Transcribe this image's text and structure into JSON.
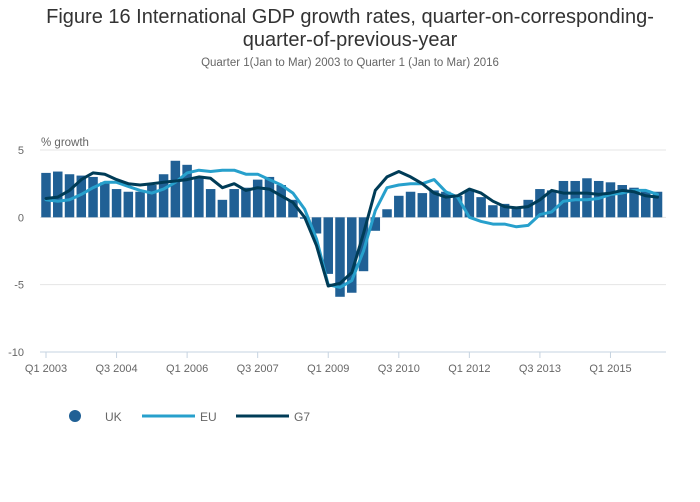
{
  "chart_data": {
    "type": "bar",
    "title": "Figure 16 International GDP growth rates, quarter-on-corresponding-quarter-of-previous-year",
    "title_lines": [
      "Figure 16 International GDP growth rates, quarter-on-corresponding-",
      "quarter-of-previous-year"
    ],
    "subtitle": "Quarter 1(Jan to Mar) 2003 to Quarter 1 (Jan to Mar) 2016",
    "xlabel": "",
    "ylabel": "% growth",
    "ylim": [
      -10,
      5
    ],
    "yticks": [
      5,
      0,
      -5,
      -10
    ],
    "grid": true,
    "legend_position": "bottom-left",
    "xtick_labels": [
      "Q1 2003",
      "Q3 2004",
      "Q1 2006",
      "Q3 2007",
      "Q1 2009",
      "Q3 2010",
      "Q1 2012",
      "Q3 2013",
      "Q1 2015"
    ],
    "xtick_indices": [
      0,
      6,
      12,
      18,
      24,
      30,
      36,
      42,
      48
    ],
    "categories": [
      "Q1 2003",
      "Q2 2003",
      "Q3 2003",
      "Q4 2003",
      "Q1 2004",
      "Q2 2004",
      "Q3 2004",
      "Q4 2004",
      "Q1 2005",
      "Q2 2005",
      "Q3 2005",
      "Q4 2005",
      "Q1 2006",
      "Q2 2006",
      "Q3 2006",
      "Q4 2006",
      "Q1 2007",
      "Q2 2007",
      "Q3 2007",
      "Q4 2007",
      "Q1 2008",
      "Q2 2008",
      "Q3 2008",
      "Q4 2008",
      "Q1 2009",
      "Q2 2009",
      "Q3 2009",
      "Q4 2009",
      "Q1 2010",
      "Q2 2010",
      "Q3 2010",
      "Q4 2010",
      "Q1 2011",
      "Q2 2011",
      "Q3 2011",
      "Q4 2011",
      "Q1 2012",
      "Q2 2012",
      "Q3 2012",
      "Q4 2012",
      "Q1 2013",
      "Q2 2013",
      "Q3 2013",
      "Q4 2013",
      "Q1 2014",
      "Q2 2014",
      "Q3 2014",
      "Q4 2014",
      "Q1 2015",
      "Q2 2015",
      "Q3 2015",
      "Q4 2015",
      "Q1 2016"
    ],
    "series": [
      {
        "name": "UK",
        "type": "bar",
        "color": "#206095",
        "values": [
          3.3,
          3.4,
          3.2,
          3.1,
          3.0,
          2.6,
          2.1,
          1.9,
          1.9,
          2.4,
          3.2,
          4.2,
          3.9,
          3.0,
          2.1,
          1.3,
          2.1,
          2.2,
          2.8,
          3.0,
          2.4,
          1.3,
          -0.1,
          -1.2,
          -4.2,
          -5.9,
          -5.6,
          -4.0,
          -1.0,
          0.6,
          1.6,
          1.9,
          1.8,
          2.0,
          1.9,
          1.6,
          2.0,
          1.5,
          0.9,
          1.0,
          0.8,
          1.3,
          2.1,
          2.0,
          2.7,
          2.7,
          2.9,
          2.7,
          2.6,
          2.4,
          2.2,
          2.0,
          1.9
        ]
      },
      {
        "name": "EU",
        "type": "line",
        "color": "#27a0cc",
        "values": [
          1.3,
          1.2,
          1.3,
          1.7,
          2.2,
          2.6,
          2.6,
          2.3,
          2.0,
          1.8,
          2.1,
          2.6,
          3.3,
          3.5,
          3.4,
          3.5,
          3.5,
          3.2,
          3.2,
          2.8,
          2.4,
          1.8,
          0.6,
          -1.6,
          -5.0,
          -5.2,
          -4.7,
          -2.5,
          0.5,
          2.2,
          2.4,
          2.5,
          2.5,
          2.8,
          1.9,
          1.5,
          0.0,
          -0.3,
          -0.5,
          -0.5,
          -0.7,
          -0.6,
          0.2,
          0.4,
          1.2,
          1.3,
          1.3,
          1.4,
          1.7,
          1.8,
          2.0,
          2.0,
          1.7
        ]
      },
      {
        "name": "G7",
        "type": "line",
        "color": "#003c57",
        "values": [
          1.4,
          1.5,
          2.0,
          2.8,
          3.3,
          3.2,
          2.8,
          2.5,
          2.4,
          2.5,
          2.6,
          2.7,
          2.8,
          3.0,
          2.9,
          2.2,
          2.5,
          2.0,
          2.2,
          2.1,
          1.6,
          1.1,
          0.0,
          -2.1,
          -5.1,
          -4.9,
          -4.1,
          -1.2,
          2.0,
          3.0,
          3.4,
          3.0,
          2.5,
          1.8,
          1.5,
          1.6,
          2.1,
          1.8,
          1.2,
          0.8,
          0.7,
          0.8,
          1.3,
          2.0,
          1.8,
          1.8,
          1.8,
          1.7,
          1.8,
          2.0,
          1.9,
          1.6,
          1.5
        ]
      }
    ]
  },
  "legend": {
    "items": [
      {
        "label": "UK",
        "symbol": "circle",
        "color": "#206095"
      },
      {
        "label": "EU",
        "symbol": "line",
        "color": "#27a0cc"
      },
      {
        "label": "G7",
        "symbol": "line",
        "color": "#003c57"
      }
    ]
  }
}
